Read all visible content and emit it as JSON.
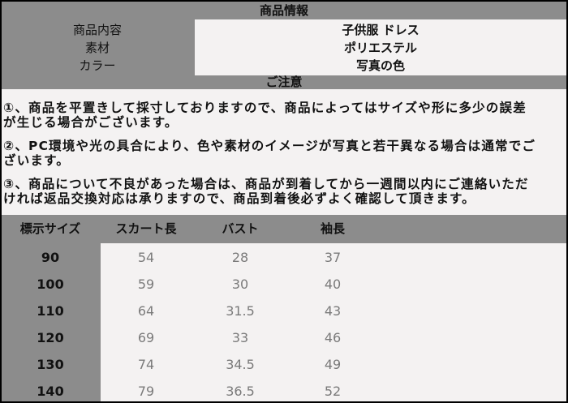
{
  "info": {
    "title": "商品情報",
    "rows": [
      {
        "label": "商品内容",
        "value": "子供服 ドレス"
      },
      {
        "label": "素材",
        "value": "ポリエステル"
      },
      {
        "label": "カラー",
        "value": "写真の色"
      }
    ]
  },
  "notes": {
    "title": "ご注意",
    "items": [
      [
        "①、商品を平置きして採寸しておりますので、商品によってはサイズや形に多少の誤差",
        "が生じる場合がございます。"
      ],
      [
        "②、PC環境や光の具合により、色や素材のイメージが写真と若干異なる場合は通常でご",
        "ざいます。"
      ],
      [
        "③、商品について不良があった場合は、商品が到着してから一週間以内にご連絡いただ",
        "ければ返品交換対応は承りますので、商品到着後必ずよく確認して頂きます。"
      ]
    ]
  },
  "size_table": {
    "headers": [
      "標示サイズ",
      "スカート長",
      "バスト",
      "袖長"
    ],
    "rows": [
      [
        "90",
        "54",
        "28",
        "37"
      ],
      [
        "100",
        "59",
        "30",
        "40"
      ],
      [
        "110",
        "64",
        "31.5",
        "43"
      ],
      [
        "120",
        "69",
        "33",
        "46"
      ],
      [
        "130",
        "74",
        "34.5",
        "49"
      ],
      [
        "140",
        "79",
        "36.5",
        "52"
      ]
    ]
  },
  "colors": {
    "header_bg": "#8c8c8c",
    "cell_bg": "#f4f2f2",
    "border": "#000000"
  }
}
